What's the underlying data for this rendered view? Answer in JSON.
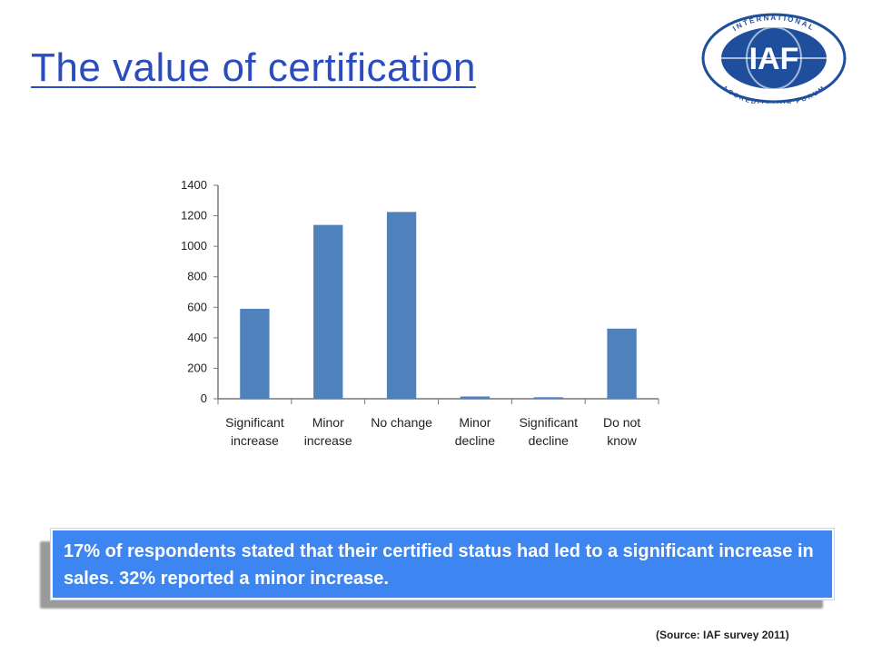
{
  "slide": {
    "title": "The value of certification",
    "callout": "17% of respondents stated that their certified status had led to a significant increase in sales. 32% reported a minor increase.",
    "source": "(Source: IAF survey 2011)"
  },
  "logo": {
    "text": "IAF",
    "ring_text_top": "INTERNATIONAL",
    "ring_text_bottom": "ACCREDITATION FORUM"
  },
  "colors": {
    "title": "#2b4cbf",
    "bar": "#4f81bd",
    "callout_bg": "#3d86f2",
    "logo": "#1f4e9c"
  },
  "chart_data": {
    "type": "bar",
    "categories": [
      [
        "Significant",
        "increase"
      ],
      [
        "Minor",
        "increase"
      ],
      [
        "No change"
      ],
      [
        "Minor",
        "decline"
      ],
      [
        "Significant",
        "decline"
      ],
      [
        "Do not",
        "know"
      ]
    ],
    "values": [
      590,
      1140,
      1225,
      15,
      10,
      460
    ],
    "ylim": [
      0,
      1400
    ],
    "yticks": [
      0,
      200,
      400,
      600,
      800,
      1000,
      1200,
      1400
    ],
    "title": "",
    "xlabel": "",
    "ylabel": "",
    "grid": false
  }
}
